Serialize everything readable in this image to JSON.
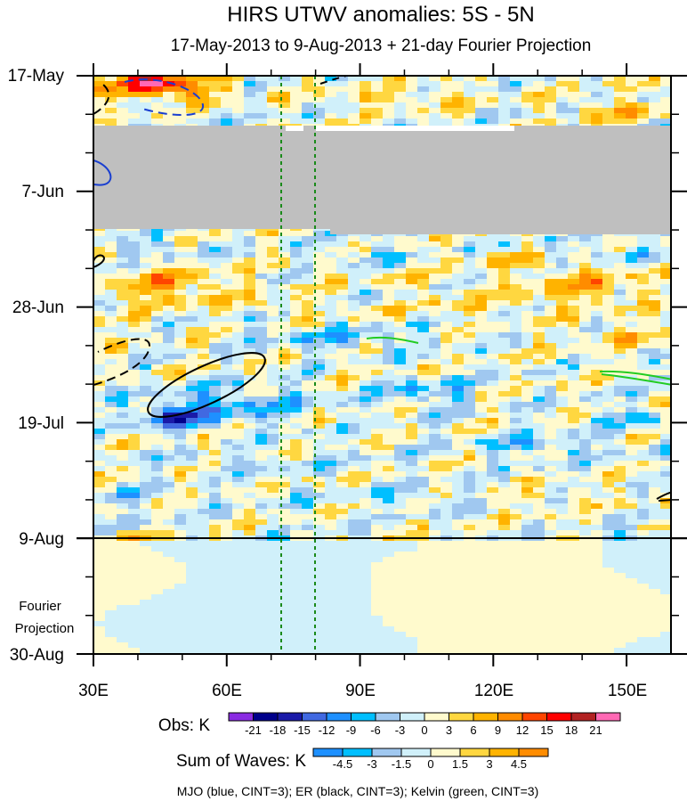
{
  "chart_data": {
    "type": "heatmap",
    "title": "HIRS UTWV anomalies: 5S - 5N",
    "subtitle": "17-May-2013 to 9-Aug-2013 + 21-day Fourier Projection",
    "x_ticks": [
      "30E",
      "60E",
      "90E",
      "120E",
      "150E"
    ],
    "x_tick_values": [
      30,
      60,
      90,
      120,
      150
    ],
    "xlim": [
      30,
      160
    ],
    "y_ticks": [
      "17-May",
      "7-Jun",
      "28-Jun",
      "19-Jul",
      "9-Aug",
      "30-Aug"
    ],
    "y_tick_days": [
      0,
      21,
      42,
      63,
      84,
      105
    ],
    "ylim_days": [
      0,
      105
    ],
    "projection_label_line1": "Fourier",
    "projection_label_line2": "Projection",
    "projection_start_day": 84,
    "missing_data_band_days": [
      9,
      28
    ],
    "reference_lines_lon": [
      72.5,
      80
    ],
    "obs_colorbar": {
      "label": "Obs: K",
      "levels": [
        "-21",
        "-18",
        "-15",
        "-12",
        "-9",
        "-6",
        "-3",
        "0",
        "3",
        "6",
        "9",
        "12",
        "15",
        "18",
        "21"
      ],
      "colors": [
        "#8a2be2",
        "#00008b",
        "#1a1aa8",
        "#4169e1",
        "#1e90ff",
        "#00bfff",
        "#a0c8f0",
        "#d0f0fa",
        "#fffacd",
        "#ffd740",
        "#ffb300",
        "#ff8c00",
        "#ff4500",
        "#ff0000",
        "#b22222",
        "#ff69b4"
      ]
    },
    "waves_colorbar": {
      "label": "Sum of Waves: K",
      "levels": [
        "-4.5",
        "-3",
        "-1.5",
        "0",
        "1.5",
        "3",
        "4.5"
      ],
      "colors": [
        "#1e90ff",
        "#00bfff",
        "#a0c8f0",
        "#d0f0fa",
        "#fffacd",
        "#ffd740",
        "#ffb300",
        "#ff8c00"
      ]
    },
    "footer": "MJO (blue, CINT=3); ER (black, CINT=3); Kelvin (green, CINT=3)"
  }
}
